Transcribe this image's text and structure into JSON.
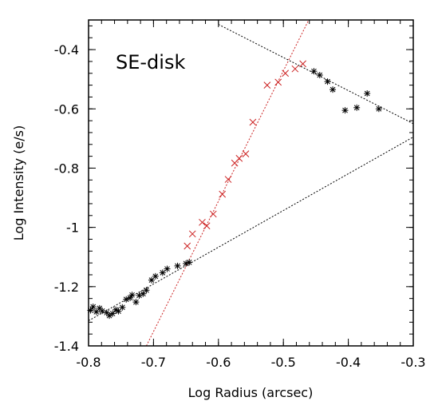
{
  "chart_data": {
    "type": "scatter",
    "title": "SE-disk",
    "xlabel": "Log Radius (arcsec)",
    "ylabel": "Log Intensity (e/s)",
    "xlim": [
      -0.8,
      -0.3
    ],
    "ylim": [
      -1.4,
      -0.3
    ],
    "x_ticks": [
      -0.8,
      -0.7,
      -0.6,
      -0.5,
      -0.4,
      -0.3
    ],
    "x_tick_labels": [
      "-0.8",
      "-0.7",
      "-0.6",
      "-0.5",
      "-0.4",
      "-0.3"
    ],
    "y_ticks": [
      -1.4,
      -1.2,
      -1.0,
      -0.8,
      -0.6,
      -0.4
    ],
    "y_tick_labels": [
      "-1.4",
      "-1.2",
      "-1",
      "-0.8",
      "-0.6",
      "-0.4"
    ],
    "grid": false,
    "series": [
      {
        "marker": "asterisk",
        "color": "#000000",
        "x": [
          -0.797,
          -0.793,
          -0.788,
          -0.783,
          -0.779,
          -0.772,
          -0.768,
          -0.763,
          -0.758,
          -0.754,
          -0.748,
          -0.742,
          -0.736,
          -0.733,
          -0.727,
          -0.722,
          -0.716,
          -0.711,
          -0.703,
          -0.697,
          -0.686,
          -0.679,
          -0.663,
          -0.645,
          -0.65
        ],
        "y": [
          -1.28,
          -1.268,
          -1.285,
          -1.273,
          -1.282,
          -1.288,
          -1.298,
          -1.291,
          -1.278,
          -1.283,
          -1.27,
          -1.243,
          -1.238,
          -1.228,
          -1.252,
          -1.23,
          -1.224,
          -1.212,
          -1.178,
          -1.165,
          -1.153,
          -1.14,
          -1.13,
          -1.118,
          -1.122
        ]
      },
      {
        "marker": "asterisk",
        "color": "#000000",
        "x": [
          -0.453,
          -0.444,
          -0.432,
          -0.424,
          -0.405,
          -0.387,
          -0.371,
          -0.353
        ],
        "y": [
          -0.473,
          -0.486,
          -0.508,
          -0.535,
          -0.605,
          -0.596,
          -0.548,
          -0.6
        ]
      },
      {
        "marker": "x",
        "color": "#cc2222",
        "x": [
          -0.648,
          -0.64,
          -0.625,
          -0.618,
          -0.608,
          -0.594,
          -0.585,
          -0.575,
          -0.568,
          -0.558,
          -0.547,
          -0.525,
          -0.508,
          -0.497,
          -0.482,
          -0.47
        ],
        "y": [
          -1.063,
          -1.022,
          -0.983,
          -0.995,
          -0.955,
          -0.888,
          -0.838,
          -0.783,
          -0.767,
          -0.752,
          -0.645,
          -0.52,
          -0.51,
          -0.48,
          -0.465,
          -0.448
        ]
      }
    ],
    "fit_lines": [
      {
        "color": "#000000",
        "dash": "dotted",
        "points": [
          [
            -0.8,
            -1.315
          ],
          [
            -0.3,
            -0.695
          ]
        ]
      },
      {
        "color": "#000000",
        "dash": "dotted",
        "points": [
          [
            -0.6,
            -0.315
          ],
          [
            -0.3,
            -0.65
          ]
        ]
      },
      {
        "color": "#cc2222",
        "dash": "dotted",
        "points": [
          [
            -0.711,
            -1.4
          ],
          [
            -0.461,
            -0.3
          ]
        ]
      }
    ]
  }
}
